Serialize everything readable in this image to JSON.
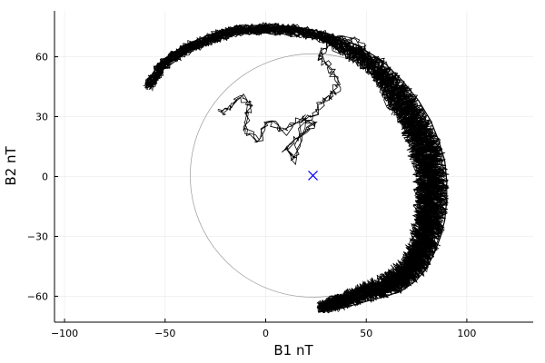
{
  "chart_data": {
    "type": "scatter",
    "xlabel": "B1 nT",
    "ylabel": "B2 nT",
    "xlim": [
      -105,
      133
    ],
    "ylim": [
      -73,
      83
    ],
    "xticks": [
      -100,
      -50,
      0,
      50,
      100
    ],
    "yticks": [
      -60,
      -30,
      0,
      30,
      60
    ],
    "xtick_labels": [
      "−100",
      "−50",
      "0",
      "50",
      "100"
    ],
    "ytick_labels": [
      "−60",
      "−30",
      "0",
      "30",
      "60"
    ],
    "grid": true,
    "legend": "none",
    "series": [
      {
        "kind": "reference-circle",
        "center": [
          23.5,
          0.5
        ],
        "radius": 61,
        "color": "#999999"
      },
      {
        "kind": "center-marker",
        "marker": "x",
        "x": 23.5,
        "y": 0.5,
        "color": "#0000ff"
      },
      {
        "kind": "trajectory",
        "color": "#000000",
        "x": [
          -60,
          -52,
          -40,
          -28,
          -15,
          0,
          15,
          30,
          45,
          58,
          68,
          76,
          82,
          86,
          89,
          90,
          90,
          89,
          87,
          84,
          80,
          75,
          68,
          60,
          52,
          45,
          38,
          32,
          26
        ],
        "y": [
          46,
          58,
          66,
          71,
          75,
          76,
          75,
          72,
          66,
          58,
          48,
          38,
          28,
          18,
          8,
          -2,
          -12,
          -22,
          -30,
          -38,
          -46,
          -52,
          -57,
          -60,
          -62,
          -64,
          -66,
          -67,
          -68
        ]
      },
      {
        "kind": "inner-loops",
        "color": "#000000",
        "x": [
          -22,
          -18,
          -12,
          -8,
          -10,
          -4,
          2,
          10,
          18,
          24,
          16,
          10,
          14,
          18,
          26,
          32,
          36,
          32,
          26,
          32,
          38,
          46,
          52,
          56,
          60,
          64
        ],
        "y": [
          32,
          34,
          40,
          36,
          24,
          18,
          28,
          22,
          30,
          26,
          20,
          14,
          8,
          26,
          34,
          40,
          46,
          54,
          60,
          66,
          70,
          68,
          60,
          50,
          40,
          30
        ]
      }
    ]
  }
}
